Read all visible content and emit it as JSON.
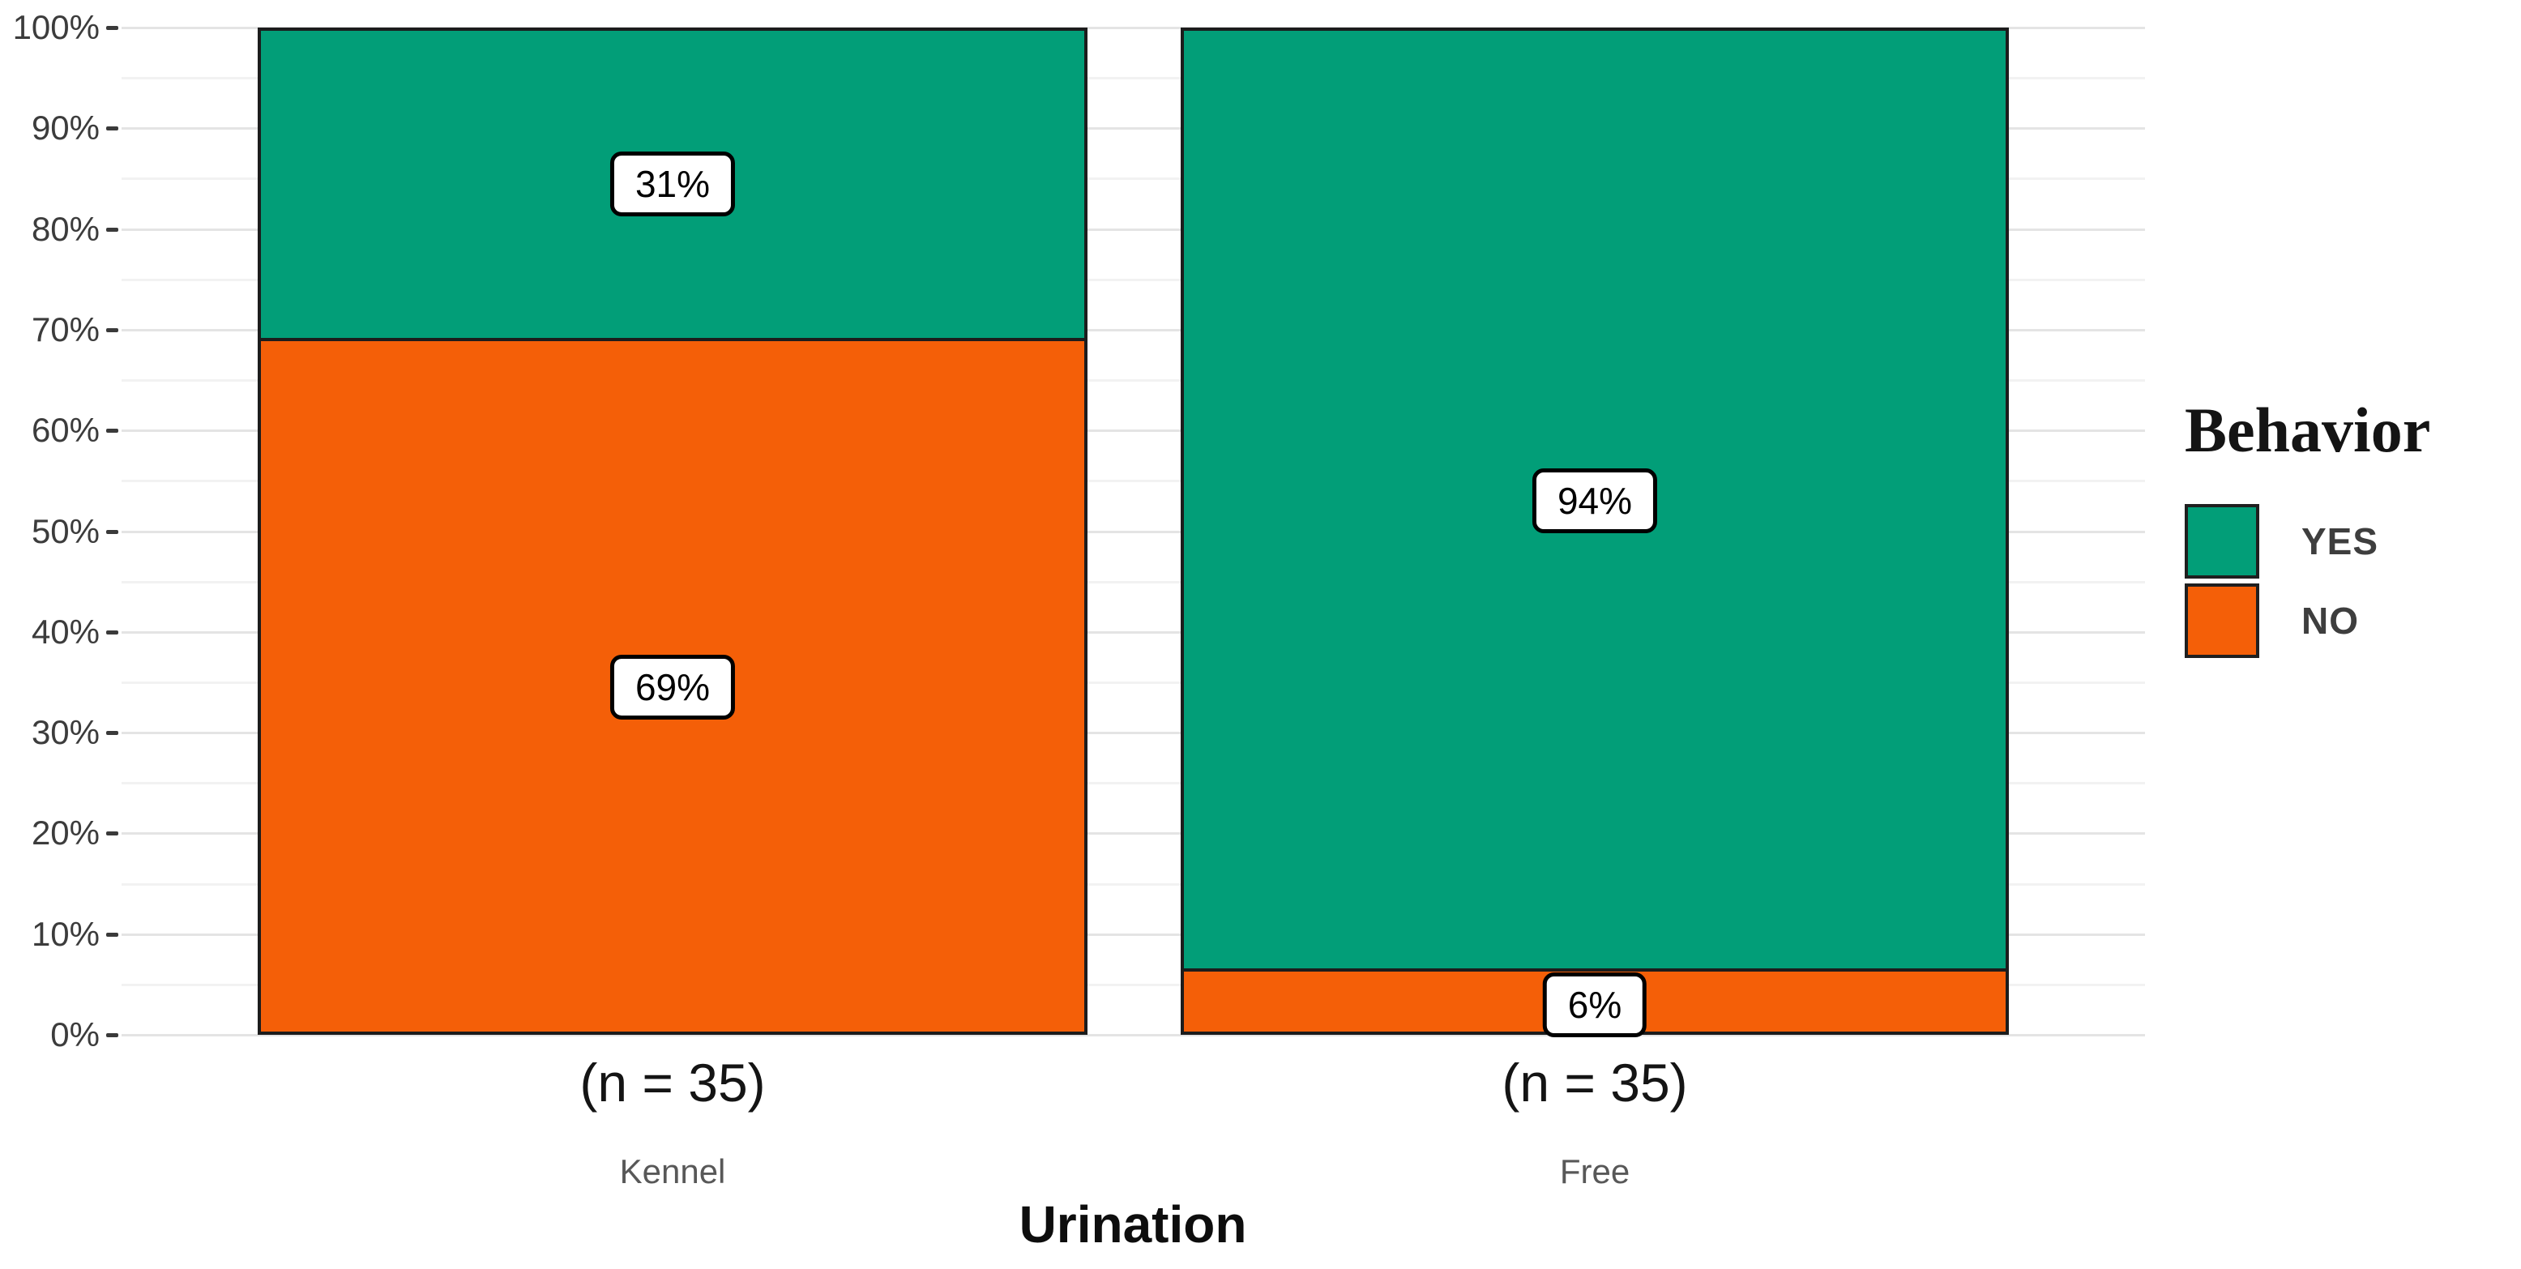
{
  "figure": {
    "background": "#ffffff"
  },
  "chart_data": {
    "type": "bar",
    "variant": "100%-stacked-column",
    "title": "",
    "xlabel": "Urination",
    "ylabel": "",
    "categories": [
      {
        "label": "Kennel",
        "sublabel": "(n = 35)"
      },
      {
        "label": "Free",
        "sublabel": "(n = 35)"
      }
    ],
    "series": [
      {
        "name": "YES",
        "color": "#029E78",
        "values": [
          31,
          94
        ],
        "value_labels": [
          "31%",
          "94%"
        ]
      },
      {
        "name": "NO",
        "color": "#F45F08",
        "values": [
          69,
          6
        ],
        "value_labels": [
          "69%",
          "6%"
        ]
      }
    ],
    "y_axis": {
      "min": 0,
      "max": 100,
      "major_step": 10,
      "minor_step": 5,
      "tick_labels": [
        "0%",
        "10%",
        "20%",
        "30%",
        "40%",
        "50%",
        "60%",
        "70%",
        "80%",
        "90%",
        "100%"
      ]
    },
    "ylim": [
      0,
      100
    ],
    "grid": {
      "horizontal_major": true,
      "horizontal_minor": true,
      "vertical": false
    },
    "legend": {
      "title": "Behavior",
      "position": "right",
      "entries": [
        "YES",
        "NO"
      ]
    },
    "bar_border_color": "#1c1c1c",
    "value_label_style": {
      "background": "#ffffff",
      "border": "#000000"
    }
  },
  "palette": {
    "grid_major": "#e4e4e4",
    "grid_minor": "#f2f2f2",
    "tick_text": "#3c3c3c",
    "tick_mark": "#3a3a3a",
    "category_text": "#585858",
    "axis_text": "#141414"
  }
}
